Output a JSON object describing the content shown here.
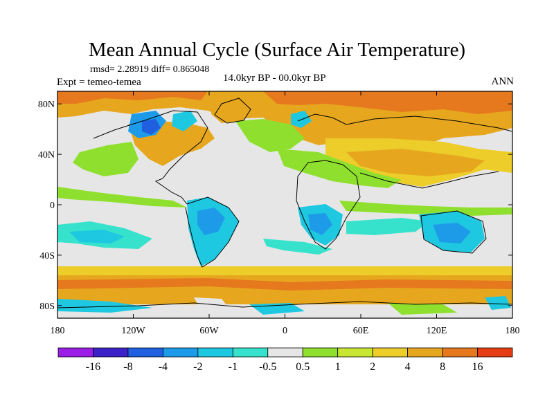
{
  "title": "Mean Annual Cycle (Surface Air Temperature)",
  "stats": "rmsd= 2.28919 diff= 0.865048",
  "expt": "Expt = temeo-temea",
  "period": "14.0kyr BP - 00.0kyr BP",
  "season": "ANN",
  "map": {
    "lon_range": [
      -180,
      180
    ],
    "lat_range": [
      -90,
      90
    ],
    "lat_ticks": [
      {
        "value": 80,
        "label": "80N"
      },
      {
        "value": 40,
        "label": "40N"
      },
      {
        "value": 0,
        "label": "0"
      },
      {
        "value": -40,
        "label": "40S"
      },
      {
        "value": -80,
        "label": "80S"
      }
    ],
    "lon_ticks": [
      {
        "value": -180,
        "label": "180"
      },
      {
        "value": -120,
        "label": "120W"
      },
      {
        "value": -60,
        "label": "60W"
      },
      {
        "value": 0,
        "label": "0"
      },
      {
        "value": 60,
        "label": "60E"
      },
      {
        "value": 120,
        "label": "120E"
      },
      {
        "value": 180,
        "label": "180"
      }
    ]
  },
  "colorbar": {
    "colors": [
      "#9a1ee6",
      "#3b22c8",
      "#1f5fe0",
      "#1e9be8",
      "#1ec8e0",
      "#36e2cc",
      "#e6e6e6",
      "#8fe02e",
      "#c8e632",
      "#eccd2a",
      "#e6a71e",
      "#e6781e",
      "#e63c14"
    ],
    "labels": [
      "-16",
      "-8",
      "-4",
      "-2",
      "-1",
      "-0.5",
      "0.5",
      "1",
      "2",
      "4",
      "8",
      "16"
    ]
  }
}
